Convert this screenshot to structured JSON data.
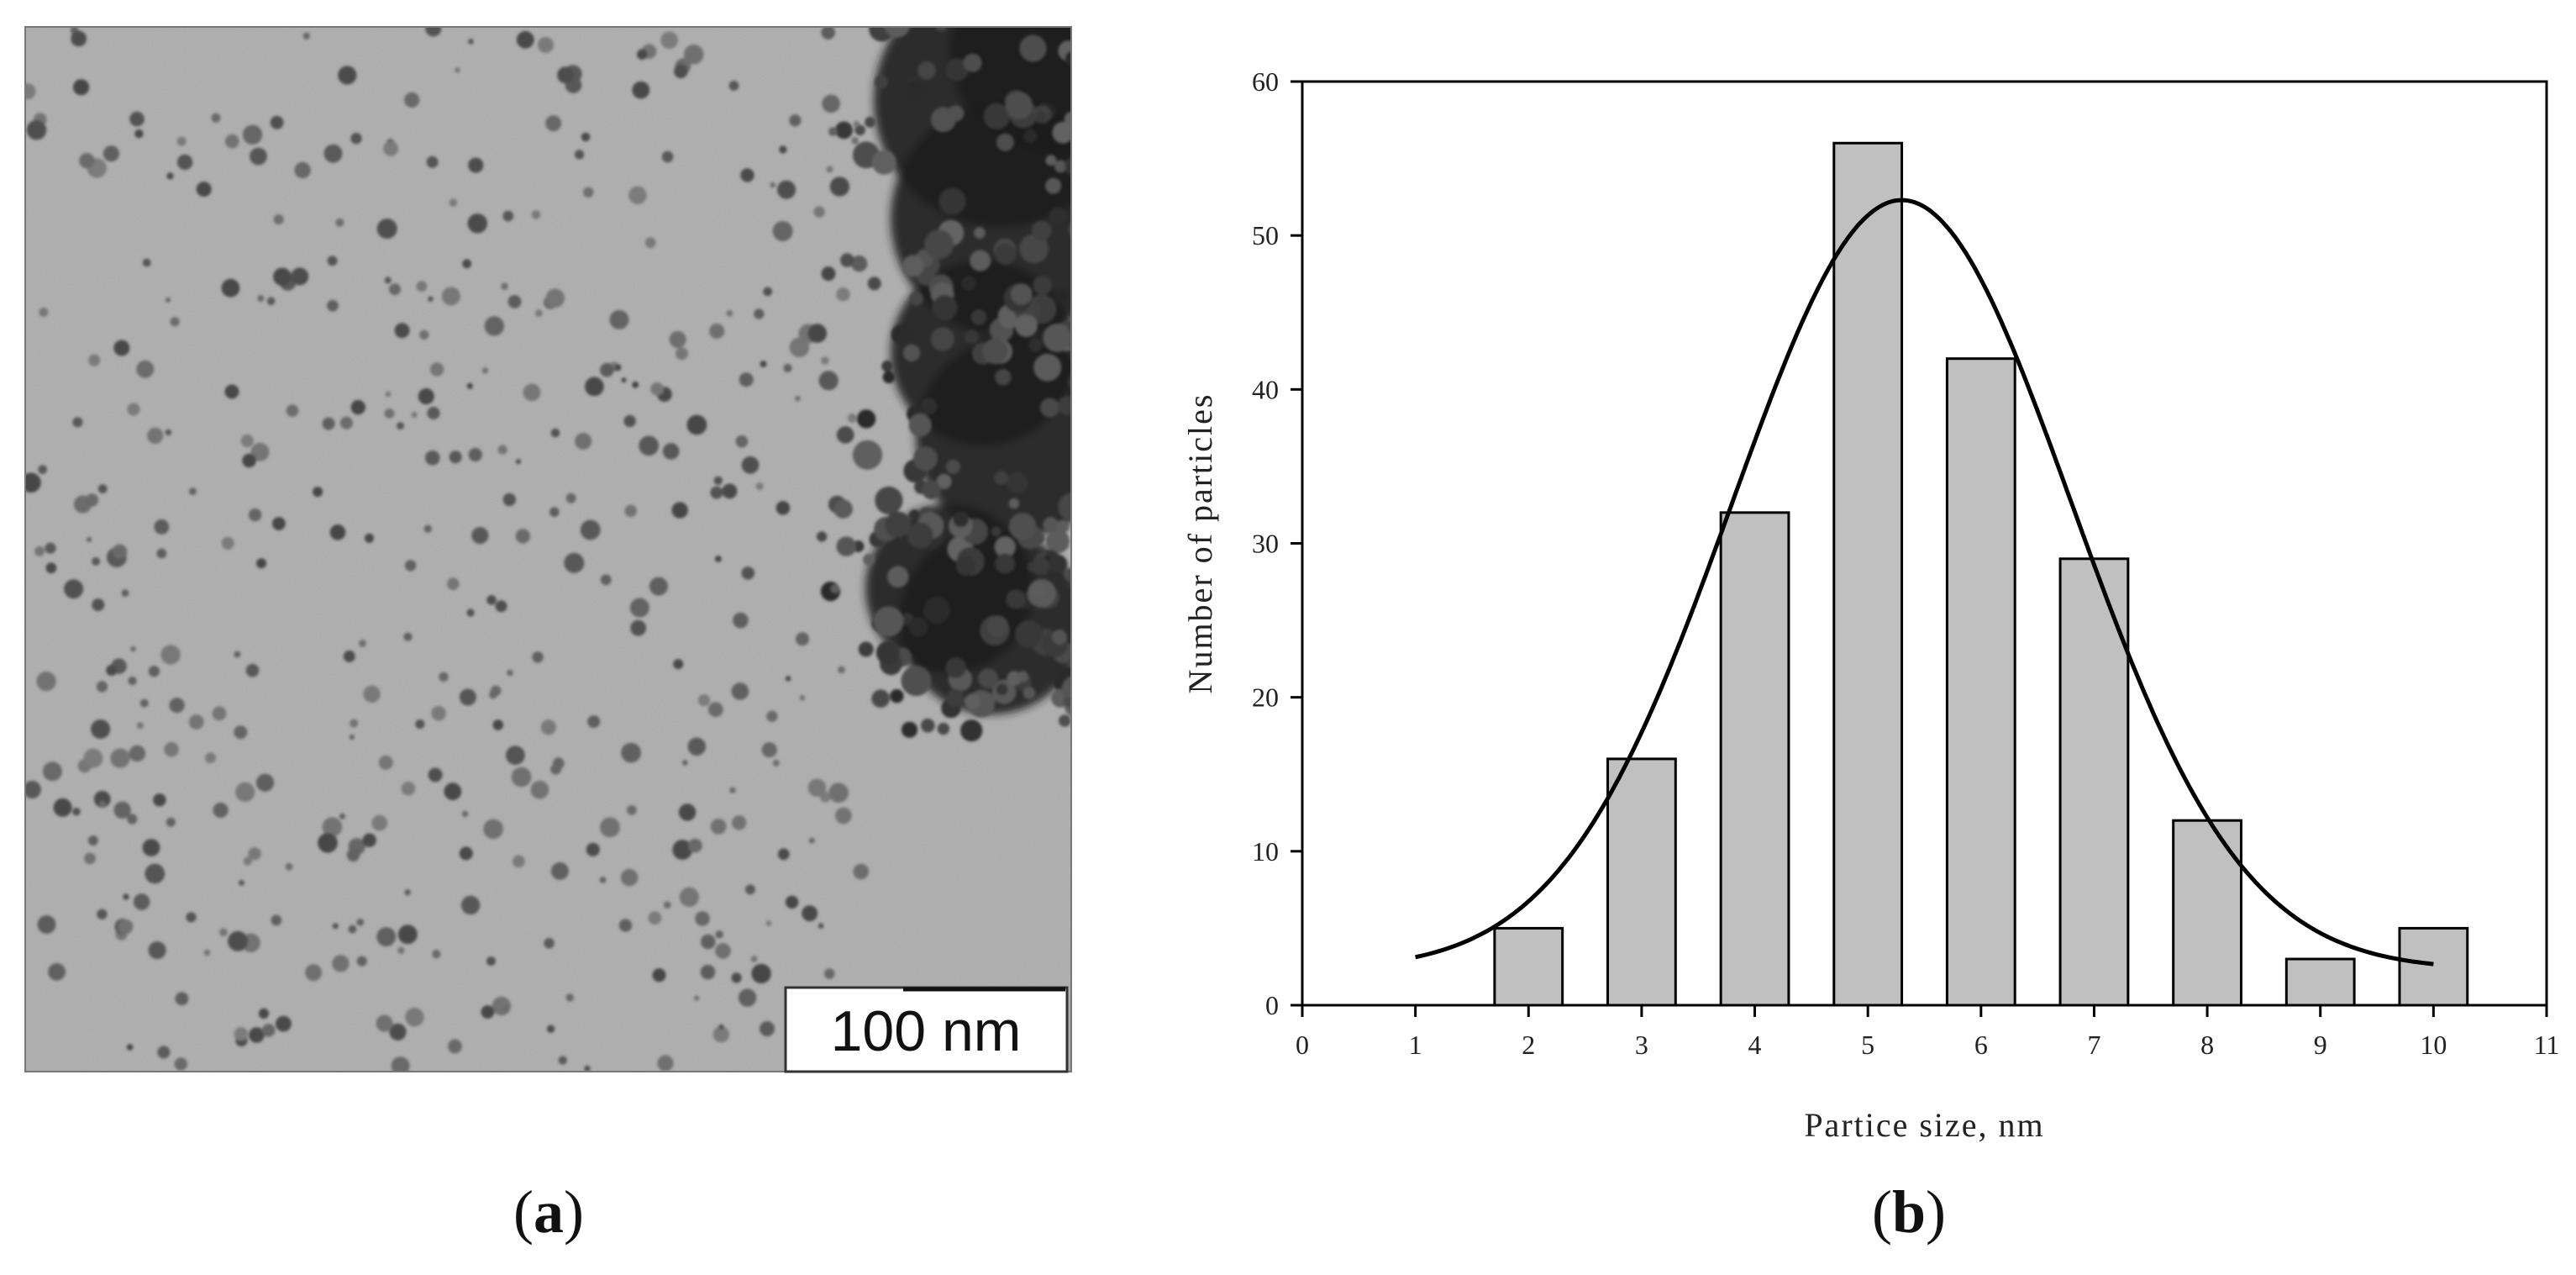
{
  "panels": {
    "a": {
      "label_open": "(",
      "label_letter": "a",
      "label_close": ")",
      "scale_bar_text": "100 nm"
    },
    "b": {
      "label_open": "(",
      "label_letter": "b",
      "label_close": ")"
    }
  },
  "chart_data": {
    "type": "bar",
    "title": "",
    "xlabel": "Partice size, nm",
    "ylabel": "Number of particles",
    "xlim": [
      0,
      11
    ],
    "ylim": [
      0,
      60
    ],
    "xticks": [
      0,
      1,
      2,
      3,
      4,
      5,
      6,
      7,
      8,
      9,
      10,
      11
    ],
    "yticks": [
      0,
      10,
      20,
      30,
      40,
      50,
      60
    ],
    "bar_width": 0.6,
    "bar_color": "#c0c0c0",
    "categories": [
      2,
      3,
      4,
      5,
      6,
      7,
      8,
      9,
      10
    ],
    "values": [
      5,
      16,
      32,
      56,
      42,
      29,
      12,
      3,
      5
    ],
    "fit_curve": {
      "type": "gaussian",
      "x_range": [
        1,
        10
      ],
      "amplitude": 50.0,
      "mean": 5.3,
      "sigma": 1.5,
      "offset": 2.3
    },
    "grid": false,
    "legend": "none"
  }
}
